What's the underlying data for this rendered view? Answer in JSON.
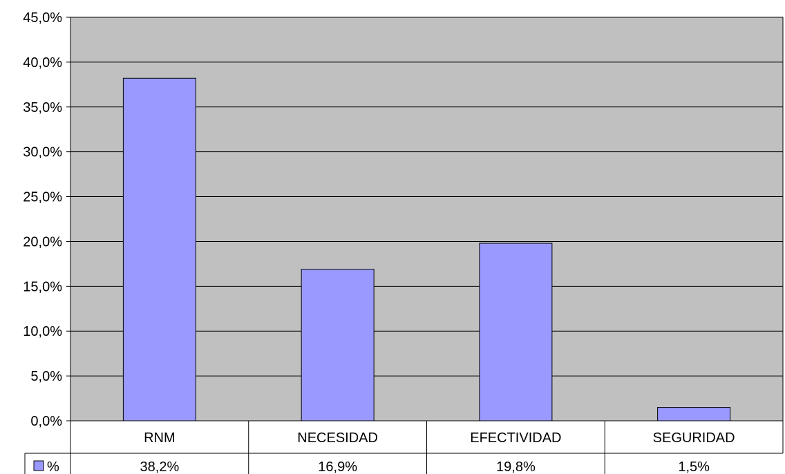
{
  "chart_data": {
    "type": "bar",
    "categories": [
      "RNM",
      "NECESIDAD",
      "EFECTIVIDAD",
      "SEGURIDAD"
    ],
    "series": [
      {
        "name": "%",
        "values": [
          38.2,
          16.9,
          19.8,
          1.5
        ],
        "labels": [
          "38,2%",
          "16,9%",
          "19,8%",
          "1,5%"
        ]
      }
    ],
    "y_ticks": [
      0,
      5,
      10,
      15,
      20,
      25,
      30,
      35,
      40,
      45
    ],
    "y_tick_labels": [
      "0,0%",
      "5,0%",
      "10,0%",
      "15,0%",
      "20,0%",
      "25,0%",
      "30,0%",
      "35,0%",
      "40,0%",
      "45,0%"
    ],
    "ylim": [
      0,
      45
    ],
    "grid": true,
    "legend": "data-table",
    "colors": {
      "plot_bg": "#c0c0c0",
      "bar_fill": "#9999ff",
      "bar_stroke": "#000000"
    }
  }
}
